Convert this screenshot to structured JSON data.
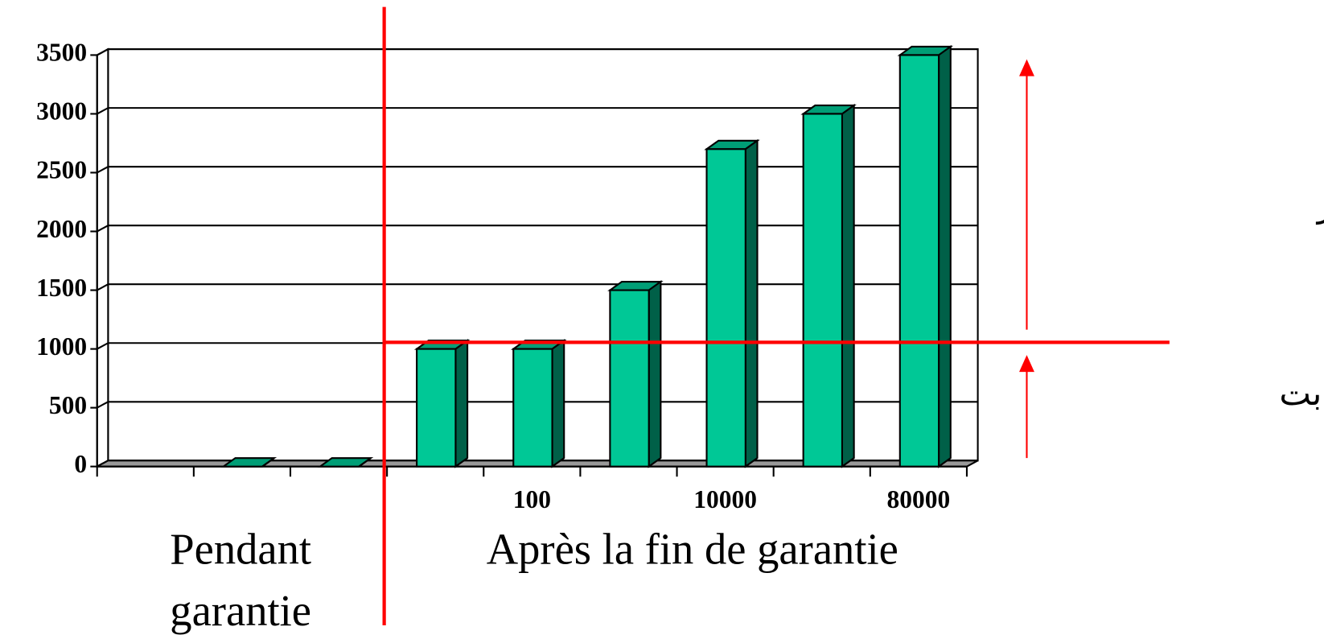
{
  "chart_data": {
    "type": "bar",
    "categories": [
      null,
      null,
      null,
      null,
      "100",
      null,
      "10000",
      null,
      "80000"
    ],
    "values": [
      null,
      0,
      0,
      1000,
      1000,
      1500,
      2700,
      3000,
      3500
    ],
    "color": "#00c896",
    "ylim": [
      0,
      3500
    ],
    "yticks": [
      0,
      500,
      1000,
      1500,
      2000,
      2500,
      3000,
      3500
    ],
    "grid": true,
    "annotations": [
      "Pendant",
      "garantie",
      "Après la fin de garantie",
      "هزینه های متغیر",
      "هزینه های ثابت"
    ]
  }
}
